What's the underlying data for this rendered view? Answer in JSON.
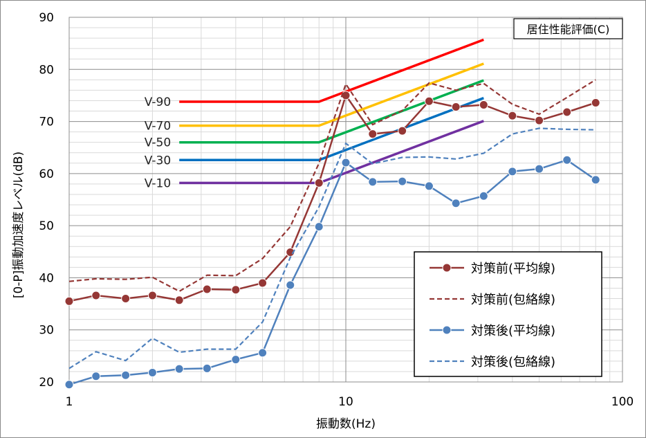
{
  "chart_data": {
    "type": "line",
    "xscale": "log",
    "xlim": [
      1,
      100
    ],
    "ylim": [
      20,
      90
    ],
    "xticks": [
      1,
      10,
      100
    ],
    "yticks": [
      20,
      30,
      40,
      50,
      60,
      70,
      80,
      90
    ],
    "xlabel": "振動数(Hz)",
    "ylabel": "[0-P]振動加速度レベル(dB)",
    "annotation": "居住性能評価(C)",
    "grid": true,
    "legend_position": "bottom-right",
    "series": [
      {
        "name": "対策前(平均線)",
        "style": "line-marker",
        "color": "#953735",
        "x": [
          1,
          1.25,
          1.6,
          2,
          2.5,
          3.15,
          4,
          5,
          6.3,
          8,
          10,
          12.5,
          16,
          20,
          25,
          31.5,
          40,
          50,
          63,
          80
        ],
        "y": [
          35.5,
          36.6,
          36.0,
          36.6,
          35.7,
          37.8,
          37.7,
          39.0,
          44.9,
          58.2,
          75.0,
          67.6,
          68.2,
          73.9,
          72.8,
          73.2,
          71.1,
          70.2,
          71.8,
          73.6
        ]
      },
      {
        "name": "対策前(包絡線)",
        "style": "dashed",
        "color": "#953735",
        "x": [
          1,
          1.25,
          1.6,
          2,
          2.5,
          3.15,
          4,
          5,
          6.3,
          8,
          10,
          12.5,
          16,
          20,
          25,
          31.5,
          40,
          50,
          63,
          80
        ],
        "y": [
          39.3,
          39.8,
          39.7,
          40.1,
          37.4,
          40.5,
          40.4,
          43.7,
          49.8,
          62.0,
          77.2,
          69.4,
          72.1,
          77.4,
          76.0,
          77.3,
          73.3,
          71.4,
          74.6,
          78.0
        ]
      },
      {
        "name": "対策後(平均線)",
        "style": "line-marker",
        "color": "#4f81bd",
        "x": [
          1,
          1.25,
          1.6,
          2,
          2.5,
          3.15,
          4,
          5,
          6.3,
          8,
          10,
          12.5,
          16,
          20,
          25,
          31.5,
          40,
          50,
          63,
          80
        ],
        "y": [
          19.5,
          21.1,
          21.3,
          21.8,
          22.5,
          22.6,
          24.3,
          25.6,
          38.6,
          49.8,
          62.1,
          58.4,
          58.5,
          57.6,
          54.3,
          55.7,
          60.4,
          60.9,
          62.6,
          58.8
        ]
      },
      {
        "name": "対策後(包絡線)",
        "style": "dashed",
        "color": "#4f81bd",
        "x": [
          1,
          1.25,
          1.6,
          2,
          2.5,
          3.15,
          4,
          5,
          6.3,
          8,
          10,
          12.5,
          16,
          20,
          25,
          31.5,
          40,
          50,
          63,
          80
        ],
        "y": [
          22.6,
          25.8,
          24.1,
          28.4,
          25.7,
          26.3,
          26.3,
          31.5,
          43.9,
          53.6,
          65.8,
          61.9,
          63.1,
          63.2,
          62.8,
          63.9,
          67.6,
          68.7,
          68.5,
          68.4
        ]
      }
    ],
    "reference_lines": [
      {
        "name": "V-90",
        "color": "#ff0000",
        "x": [
          2.5,
          8,
          31.5
        ],
        "y": [
          73.8,
          73.8,
          85.7
        ]
      },
      {
        "name": "V-70",
        "color": "#ffc000",
        "x": [
          2.5,
          8,
          31.5
        ],
        "y": [
          69.2,
          69.2,
          81.1
        ]
      },
      {
        "name": "V-50",
        "color": "#00b050",
        "x": [
          2.5,
          8,
          31.5
        ],
        "y": [
          66.0,
          66.0,
          77.9
        ]
      },
      {
        "name": "V-30",
        "color": "#0070c0",
        "x": [
          2.5,
          8,
          31.5
        ],
        "y": [
          62.6,
          62.6,
          74.5
        ]
      },
      {
        "name": "V-10",
        "color": "#7030a0",
        "x": [
          2.5,
          8,
          31.5
        ],
        "y": [
          58.2,
          58.2,
          70.1
        ]
      }
    ]
  }
}
